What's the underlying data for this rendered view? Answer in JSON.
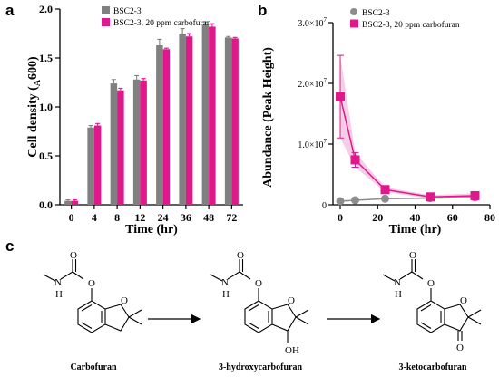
{
  "panels": {
    "a": "a",
    "b": "b",
    "c": "c"
  },
  "colors": {
    "control": "#808080",
    "treated": "#e0188c",
    "treated_band": "#f0b8dc",
    "control_dot": "#8c8c8c"
  },
  "chart_data": [
    {
      "type": "bar",
      "panel": "a",
      "categories": [
        "0",
        "4",
        "8",
        "12",
        "24",
        "36",
        "48",
        "72"
      ],
      "series": [
        {
          "name": "BSC2-3",
          "values": [
            0.04,
            0.79,
            1.24,
            1.28,
            1.63,
            1.75,
            1.84,
            1.71
          ],
          "errors": [
            0.01,
            0.02,
            0.04,
            0.04,
            0.06,
            0.05,
            0.03,
            0.01
          ]
        },
        {
          "name": "BSC2-3, 20 ppm carbofuran",
          "values": [
            0.04,
            0.81,
            1.17,
            1.27,
            1.59,
            1.72,
            1.82,
            1.7
          ],
          "errors": [
            0.01,
            0.02,
            0.02,
            0.02,
            0.01,
            0.03,
            0.03,
            0.01
          ]
        }
      ],
      "xlabel": "Time (hr)",
      "ylabel_main": "Cell density (",
      "ylabel_sub": "A",
      "ylabel_tail": "600)",
      "ylim": [
        0,
        2.0
      ],
      "yticks": [
        "0.0",
        "0.5",
        "1.0",
        "1.5",
        "2.0"
      ],
      "legend": "top-left"
    },
    {
      "type": "line",
      "panel": "b",
      "series": [
        {
          "name": "BSC2-3",
          "x": [
            0,
            8,
            24,
            48,
            72
          ],
          "y": [
            600000,
            750000,
            1000000,
            1100000,
            1200000
          ],
          "errors": [
            200000,
            100000,
            100000,
            100000,
            100000
          ]
        },
        {
          "name": "BSC2-3, 20 ppm carbofuran",
          "x": [
            0,
            8,
            24,
            48,
            72
          ],
          "y": [
            17800000,
            7400000,
            2500000,
            1300000,
            1500000
          ],
          "errors": [
            6800000,
            1200000,
            400000,
            300000,
            400000
          ]
        }
      ],
      "xlabel": "Time (hr)",
      "ylabel": "Abundance (Peak Height)",
      "xlim": [
        0,
        80
      ],
      "ylim": [
        0,
        30000000
      ],
      "xticks": [
        "0",
        "20",
        "40",
        "60",
        "80"
      ],
      "yticks": [
        {
          "base": "0",
          "exp": ""
        },
        {
          "base": "1.0×10",
          "exp": "7"
        },
        {
          "base": "2.0×10",
          "exp": "7"
        },
        {
          "base": "3.0×10",
          "exp": "7"
        }
      ],
      "legend": "top"
    }
  ],
  "scheme": {
    "compounds": [
      {
        "name": "Carbofuran"
      },
      {
        "name": "3-hydroxycarbofuran",
        "oh_label": "OH"
      },
      {
        "name": "3-ketocarbofuran",
        "o_label": "O"
      }
    ],
    "atom_o": "O",
    "atom_n": "N",
    "atom_h": "H"
  }
}
